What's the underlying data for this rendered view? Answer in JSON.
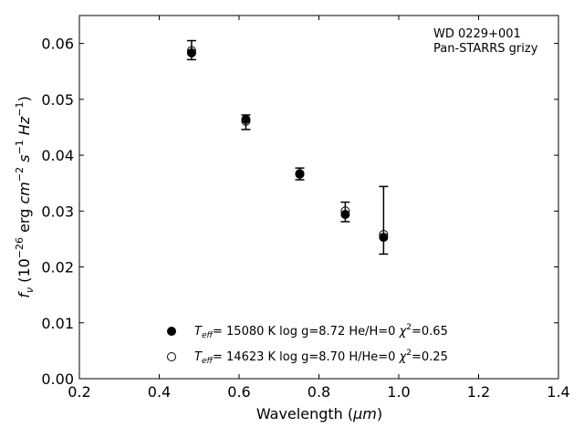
{
  "chart_data": {
    "type": "scatter",
    "xlabel_base": "Wavelength (",
    "xlabel_unit": "μm",
    "xlabel_tail": ")",
    "ylabel_parts": {
      "f": "f",
      "nu": "ν",
      "open": " (10",
      "exp1": "−26",
      "erg": " erg ",
      "cm": "cm",
      "exp2": "−2",
      "s": " s",
      "exp3": "−1",
      "hz": " Hz",
      "exp4": "−1",
      "close": ")"
    },
    "xlim": [
      0.2,
      1.4
    ],
    "ylim": [
      0.0,
      0.065
    ],
    "xticks": [
      "0.2",
      "0.4",
      "0.6",
      "0.8",
      "1.0",
      "1.2",
      "1.4"
    ],
    "yticks": [
      "0.00",
      "0.01",
      "0.02",
      "0.03",
      "0.04",
      "0.05",
      "0.06"
    ],
    "annotation": [
      "WD 0229+001",
      "Pan-STARRS grizy"
    ],
    "observed": {
      "x": [
        0.481,
        0.617,
        0.752,
        0.866,
        0.962
      ],
      "y": [
        0.0587,
        0.0458,
        0.0366,
        0.0299,
        0.0283
      ],
      "yerr_low": [
        0.0571,
        0.0446,
        0.0356,
        0.0281,
        0.0223
      ],
      "yerr_high": [
        0.0605,
        0.0472,
        0.0377,
        0.0316,
        0.0344
      ]
    },
    "series": [
      {
        "name_T": "T",
        "name_eff": "eff",
        "name_rest": "= 15080 K  log g=8.72  He/H=0  ",
        "name_chi": "χ",
        "name_chi_exp": "2",
        "name_chi_val": "=0.65",
        "marker": "filled",
        "x": [
          0.481,
          0.617,
          0.752,
          0.866,
          0.962
        ],
        "y": [
          0.0583,
          0.0464,
          0.0366,
          0.0294,
          0.0253
        ]
      },
      {
        "name_T": "T",
        "name_eff": "eff",
        "name_rest": "= 14623 K  log g=8.70  H/He=0  ",
        "name_chi": "χ",
        "name_chi_exp": "2",
        "name_chi_val": "=0.25",
        "marker": "open",
        "x": [
          0.481,
          0.617,
          0.752,
          0.866,
          0.962
        ],
        "y": [
          0.0587,
          0.0461,
          0.0367,
          0.03,
          0.0258
        ]
      }
    ],
    "legend_position": "lower-center",
    "grid": false
  }
}
